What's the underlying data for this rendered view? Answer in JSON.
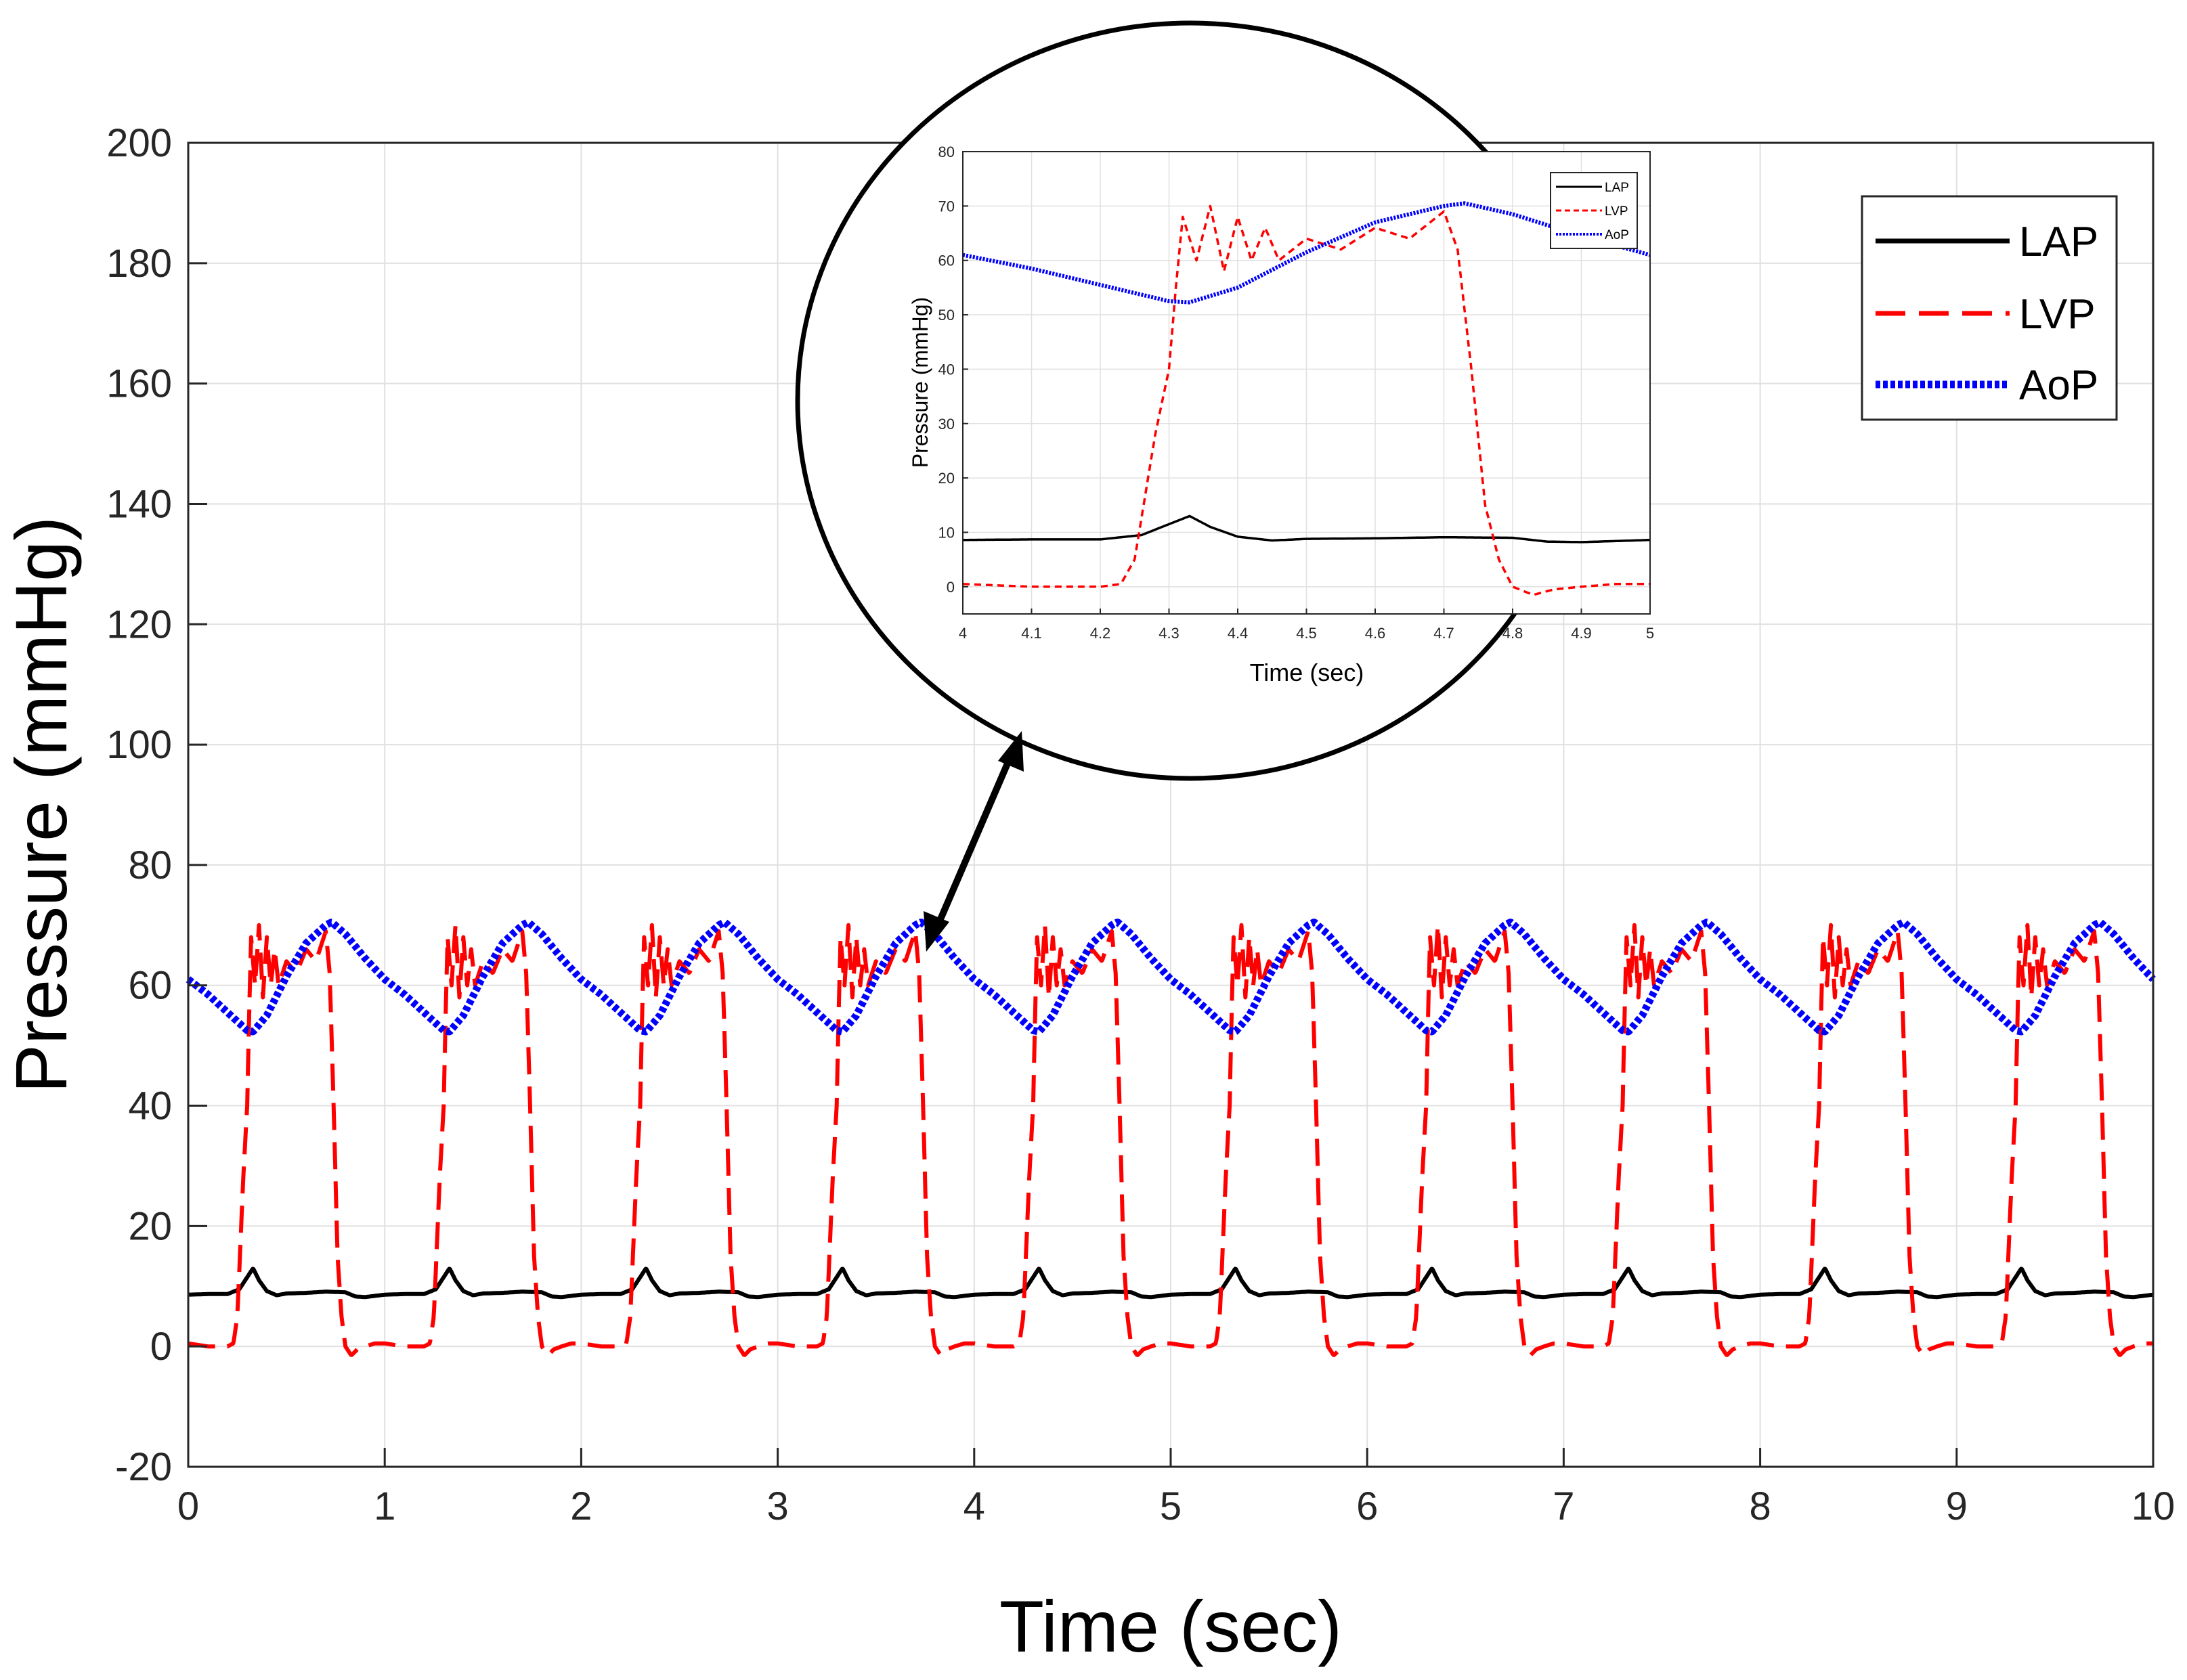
{
  "colors": {
    "LAP": "#000000",
    "LVP": "#ff0000",
    "AoP": "#0000ff",
    "grid": "#e0e0e0",
    "axis": "#262626"
  },
  "chart_data": [
    {
      "id": "main",
      "type": "line",
      "title": "",
      "xlabel": "Time (sec)",
      "ylabel": "Pressure (mmHg)",
      "xlim": [
        0,
        10
      ],
      "ylim": [
        -20,
        200
      ],
      "xticks": [
        0,
        1,
        2,
        3,
        4,
        5,
        6,
        7,
        8,
        9,
        10
      ],
      "yticks": [
        -20,
        0,
        20,
        40,
        60,
        80,
        100,
        120,
        140,
        160,
        180,
        200
      ],
      "grid": true,
      "legend_position": "top-right",
      "heart_rate_period_sec": 1.0,
      "series": [
        {
          "name": "LAP",
          "style": "solid",
          "cycle_x": [
            0,
            0.1,
            0.2,
            0.26,
            0.3,
            0.33,
            0.36,
            0.4,
            0.45,
            0.5,
            0.6,
            0.7,
            0.8,
            0.85,
            0.9,
            1.0
          ],
          "cycle_y": [
            8.6,
            8.7,
            8.7,
            9.5,
            11.5,
            13.0,
            11.0,
            9.2,
            8.5,
            8.8,
            8.9,
            9.1,
            9.0,
            8.3,
            8.2,
            8.6
          ]
        },
        {
          "name": "LVP",
          "style": "dashed",
          "cycle_x": [
            0,
            0.1,
            0.2,
            0.23,
            0.25,
            0.28,
            0.3,
            0.31,
            0.32,
            0.34,
            0.36,
            0.38,
            0.4,
            0.42,
            0.44,
            0.46,
            0.5,
            0.55,
            0.6,
            0.65,
            0.7,
            0.72,
            0.74,
            0.76,
            0.78,
            0.8,
            0.83,
            0.86,
            0.9,
            0.95,
            1.0
          ],
          "cycle_y": [
            0.5,
            0,
            0,
            0.5,
            5,
            28,
            40,
            55,
            68,
            60,
            70,
            58,
            68,
            60,
            66,
            60,
            64,
            62,
            66,
            64,
            69,
            62,
            40,
            15,
            5,
            0,
            -1.5,
            -0.5,
            0,
            0.5,
            0.5
          ]
        },
        {
          "name": "AoP",
          "style": "dotted",
          "cycle_x": [
            0,
            0.1,
            0.2,
            0.3,
            0.33,
            0.4,
            0.5,
            0.6,
            0.7,
            0.73,
            0.8,
            0.9,
            1.0
          ],
          "cycle_y": [
            61,
            58.5,
            55.5,
            52.5,
            52.3,
            55,
            61.5,
            67,
            70,
            70.5,
            68.5,
            64.5,
            61
          ]
        }
      ]
    },
    {
      "id": "inset",
      "type": "line",
      "title": "",
      "xlabel": "Time (sec)",
      "ylabel": "Pressure (mmHg)",
      "xlim": [
        4,
        5
      ],
      "ylim": [
        -5,
        80
      ],
      "xticks": [
        "4",
        "4.1",
        "4.2",
        "4.3",
        "4.4",
        "4.5",
        "4.6",
        "4.7",
        "4.8",
        "4.9",
        "5"
      ],
      "yticks": [
        0,
        10,
        20,
        30,
        40,
        50,
        60,
        70,
        80
      ],
      "grid": true,
      "legend_position": "top-right",
      "legend": [
        "LAP",
        "LVP",
        "AoP"
      ]
    }
  ]
}
